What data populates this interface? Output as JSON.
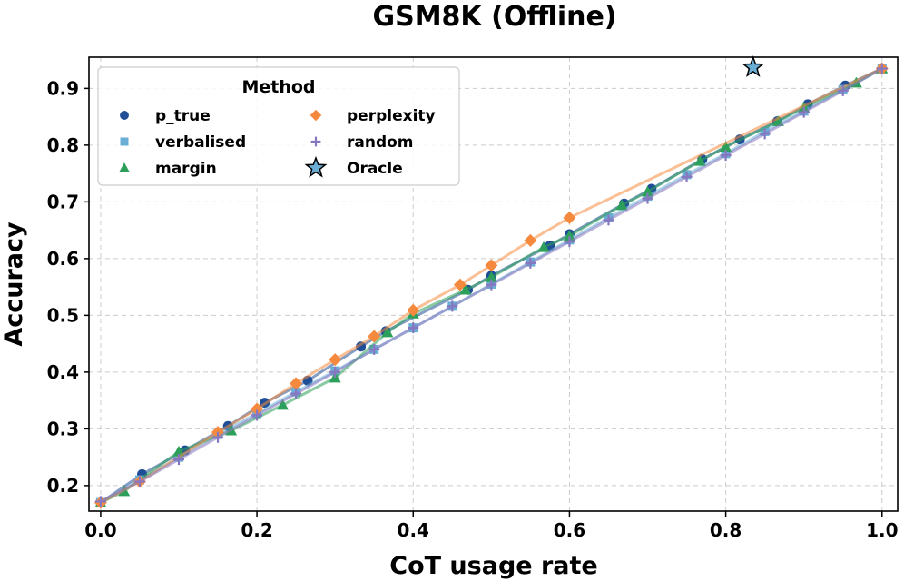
{
  "chart_data": {
    "type": "line",
    "title": "GSM8K (Offline)",
    "xlabel": "CoT usage rate",
    "ylabel": "Accuracy",
    "xlim": [
      -0.015,
      1.02
    ],
    "ylim": [
      0.155,
      0.955
    ],
    "xticks": [
      0.0,
      0.2,
      0.4,
      0.6,
      0.8,
      1.0
    ],
    "yticks": [
      0.2,
      0.3,
      0.4,
      0.5,
      0.6,
      0.7,
      0.8,
      0.9
    ],
    "grid": true,
    "legend": {
      "title": "Method",
      "placement": "top-left",
      "columns": 2
    },
    "series": [
      {
        "name": "p_true",
        "color": "#1f4e96",
        "marker": "circle",
        "x": [
          0.0,
          0.053,
          0.108,
          0.163,
          0.21,
          0.265,
          0.333,
          0.365,
          0.47,
          0.5,
          0.575,
          0.6,
          0.67,
          0.705,
          0.77,
          0.818,
          0.866,
          0.905,
          0.953,
          1.0
        ],
        "y": [
          0.17,
          0.22,
          0.262,
          0.305,
          0.346,
          0.385,
          0.445,
          0.472,
          0.545,
          0.57,
          0.623,
          0.643,
          0.697,
          0.723,
          0.775,
          0.81,
          0.842,
          0.872,
          0.905,
          0.935
        ]
      },
      {
        "name": "verbalised",
        "color": "#6aaed6",
        "marker": "square",
        "x": [
          0.0,
          0.05,
          0.1,
          0.15,
          0.2,
          0.25,
          0.3,
          0.35,
          0.4,
          0.45,
          0.5,
          0.55,
          0.6,
          0.65,
          0.7,
          0.75,
          0.8,
          0.85,
          0.9,
          0.95,
          1.0
        ],
        "y": [
          0.17,
          0.21,
          0.25,
          0.29,
          0.327,
          0.365,
          0.402,
          0.44,
          0.478,
          0.516,
          0.555,
          0.594,
          0.633,
          0.672,
          0.71,
          0.748,
          0.785,
          0.824,
          0.86,
          0.898,
          0.935
        ]
      },
      {
        "name": "margin",
        "color": "#2ca05a",
        "marker": "triangle",
        "x": [
          0.0,
          0.03,
          0.1,
          0.167,
          0.233,
          0.3,
          0.367,
          0.4,
          0.467,
          0.5,
          0.567,
          0.6,
          0.667,
          0.7,
          0.767,
          0.8,
          0.867,
          0.9,
          0.967,
          1.0
        ],
        "y": [
          0.17,
          0.19,
          0.26,
          0.297,
          0.342,
          0.39,
          0.47,
          0.503,
          0.545,
          0.567,
          0.62,
          0.64,
          0.694,
          0.718,
          0.772,
          0.797,
          0.842,
          0.866,
          0.91,
          0.935
        ]
      },
      {
        "name": "perplexity",
        "color": "#f58a3e",
        "marker": "diamond",
        "x": [
          0.0,
          0.05,
          0.15,
          0.2,
          0.25,
          0.3,
          0.35,
          0.4,
          0.46,
          0.5,
          0.55,
          0.6,
          1.0
        ],
        "y": [
          0.17,
          0.207,
          0.294,
          0.335,
          0.38,
          0.422,
          0.463,
          0.509,
          0.554,
          0.588,
          0.632,
          0.672,
          0.935
        ]
      },
      {
        "name": "random",
        "color": "#8677c0",
        "marker": "plus",
        "x": [
          0.0,
          0.05,
          0.1,
          0.15,
          0.2,
          0.25,
          0.3,
          0.35,
          0.4,
          0.45,
          0.5,
          0.55,
          0.6,
          0.65,
          0.7,
          0.75,
          0.8,
          0.85,
          0.9,
          0.95,
          1.0
        ],
        "y": [
          0.172,
          0.207,
          0.246,
          0.285,
          0.324,
          0.362,
          0.4,
          0.44,
          0.478,
          0.516,
          0.554,
          0.592,
          0.63,
          0.668,
          0.706,
          0.744,
          0.782,
          0.82,
          0.858,
          0.896,
          0.935
        ]
      }
    ],
    "oracle": {
      "name": "Oracle",
      "color": "#6aaed6",
      "marker": "star",
      "x": 0.835,
      "y": 0.937
    }
  }
}
